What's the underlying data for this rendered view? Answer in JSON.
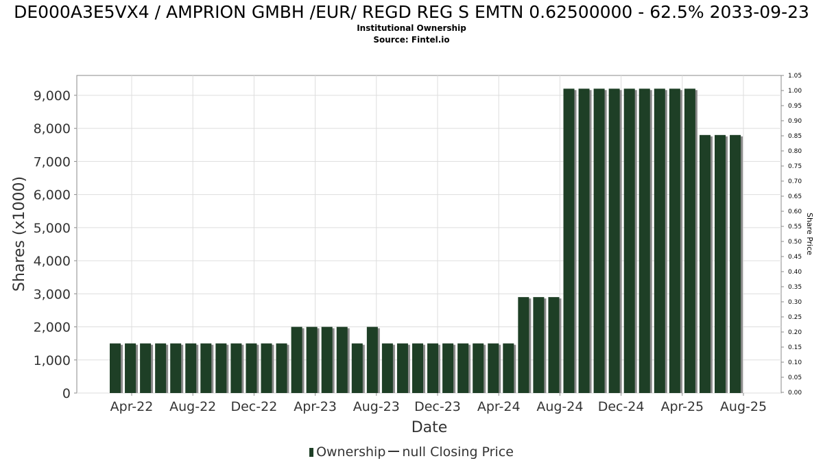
{
  "header": {
    "title": "DE000A3E5VX4 / AMPRION GMBH /EUR/ REGD REG S EMTN 0.62500000 - 62.5% 2033-09-23",
    "subtitle": "Institutional Ownership",
    "source": "Source: Fintel.io"
  },
  "legend": {
    "ownership_label": "Ownership",
    "price_label": "null Closing Price"
  },
  "colors": {
    "bar": "#1e3f26",
    "bar_shadow": "#8a8a8a",
    "grid": "#dddddd",
    "axis": "#888888"
  },
  "chart_data": {
    "type": "bar",
    "xlabel": "Date",
    "ylabel": "Shares (x1000)",
    "y2label": "Share Price",
    "ylim": [
      0,
      9600
    ],
    "y2lim": [
      0,
      1.05
    ],
    "yticks": [
      0,
      1000,
      2000,
      3000,
      4000,
      5000,
      6000,
      7000,
      8000,
      9000
    ],
    "ytick_labels": [
      "0",
      "1,000",
      "2,000",
      "3,000",
      "4,000",
      "5,000",
      "6,000",
      "7,000",
      "8,000",
      "9,000"
    ],
    "y2ticks": [
      "0.00",
      "0.05",
      "0.10",
      "0.15",
      "0.20",
      "0.25",
      "0.30",
      "0.35",
      "0.40",
      "0.45",
      "0.50",
      "0.55",
      "0.60",
      "0.65",
      "0.70",
      "0.75",
      "0.80",
      "0.85",
      "0.90",
      "0.95",
      "1.00",
      "1.05"
    ],
    "xtick_labels": [
      "Apr-22",
      "Aug-22",
      "Dec-22",
      "Apr-23",
      "Aug-23",
      "Dec-23",
      "Apr-24",
      "Aug-24",
      "Dec-24",
      "Apr-25",
      "Aug-25"
    ],
    "grid": true,
    "legend_position": "bottom",
    "series": [
      {
        "name": "Ownership",
        "values": [
          1500,
          1500,
          1500,
          1500,
          1500,
          1500,
          1500,
          1500,
          1500,
          1500,
          1500,
          1500,
          2000,
          2000,
          2000,
          2000,
          1500,
          2000,
          1500,
          1500,
          1500,
          1500,
          1500,
          1500,
          1500,
          1500,
          1500,
          2900,
          2900,
          2900,
          9200,
          9200,
          9200,
          9200,
          9200,
          9200,
          9200,
          9200,
          9200,
          7800,
          7800,
          7800
        ]
      }
    ]
  }
}
